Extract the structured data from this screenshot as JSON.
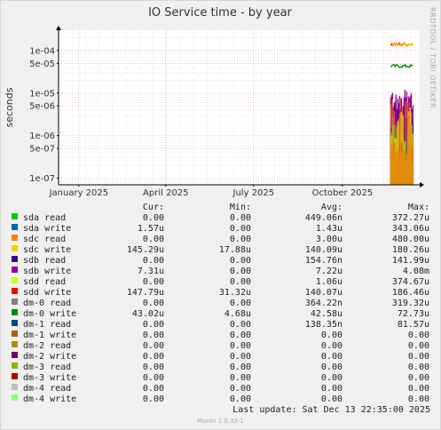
{
  "chart_data": {
    "type": "line",
    "title": "IO Service time - by year",
    "ylabel": "seconds",
    "y_scale": "log",
    "ylim": [
      7e-08,
      0.0003
    ],
    "y_ticks": [
      {
        "v": 1e-07,
        "label": "1e-07"
      },
      {
        "v": 5e-07,
        "label": "5e-07"
      },
      {
        "v": 1e-06,
        "label": "1e-06"
      },
      {
        "v": 5e-06,
        "label": "5e-06"
      },
      {
        "v": 1e-05,
        "label": "1e-05"
      },
      {
        "v": 5e-05,
        "label": "5e-05"
      },
      {
        "v": 0.0001,
        "label": "1e-04"
      }
    ],
    "x_range": [
      "2024-12-11",
      "2025-12-20"
    ],
    "x_ticks": [
      {
        "date": "2025-01-01",
        "label": "January 2025"
      },
      {
        "date": "2025-04-01",
        "label": "April 2025"
      },
      {
        "date": "2025-07-01",
        "label": "July 2025"
      },
      {
        "date": "2025-10-01",
        "label": "October 2025"
      }
    ],
    "grid": true,
    "series": [
      {
        "name": "sda read",
        "color": "#00cc00",
        "cur": "0.00",
        "min": "0.00",
        "avg": "449.06n",
        "max": "372.27u"
      },
      {
        "name": "sda write",
        "color": "#0066b3",
        "cur": "1.57u",
        "min": "0.00",
        "avg": "1.43u",
        "max": "343.06u"
      },
      {
        "name": "sdc read",
        "color": "#ff8000",
        "cur": "0.00",
        "min": "0.00",
        "avg": "3.00u",
        "max": "480.00u"
      },
      {
        "name": "sdc write",
        "color": "#ffcc00",
        "cur": "145.29u",
        "min": "17.88u",
        "avg": "140.09u",
        "max": "180.26u"
      },
      {
        "name": "sdb read",
        "color": "#330099",
        "cur": "0.00",
        "min": "0.00",
        "avg": "154.76n",
        "max": "141.99u"
      },
      {
        "name": "sdb write",
        "color": "#990099",
        "cur": "7.31u",
        "min": "0.00",
        "avg": "7.22u",
        "max": "4.08m"
      },
      {
        "name": "sdd read",
        "color": "#ccff00",
        "cur": "0.00",
        "min": "0.00",
        "avg": "1.06u",
        "max": "374.67u"
      },
      {
        "name": "sdd write",
        "color": "#ff0000",
        "cur": "147.79u",
        "min": "31.32u",
        "avg": "140.07u",
        "max": "186.46u"
      },
      {
        "name": "dm-0 read",
        "color": "#808080",
        "cur": "0.00",
        "min": "0.00",
        "avg": "364.22n",
        "max": "319.32u"
      },
      {
        "name": "dm-0 write",
        "color": "#008f00",
        "cur": "43.02u",
        "min": "4.68u",
        "avg": "42.58u",
        "max": "72.73u"
      },
      {
        "name": "dm-1 read",
        "color": "#00487d",
        "cur": "0.00",
        "min": "0.00",
        "avg": "138.35n",
        "max": "81.57u"
      },
      {
        "name": "dm-1 write",
        "color": "#b35a00",
        "cur": "0.00",
        "min": "0.00",
        "avg": "0.00",
        "max": "0.00"
      },
      {
        "name": "dm-2 read",
        "color": "#b38f00",
        "cur": "0.00",
        "min": "0.00",
        "avg": "0.00",
        "max": "0.00"
      },
      {
        "name": "dm-2 write",
        "color": "#6b006b",
        "cur": "0.00",
        "min": "0.00",
        "avg": "0.00",
        "max": "0.00"
      },
      {
        "name": "dm-3 read",
        "color": "#8fb300",
        "cur": "0.00",
        "min": "0.00",
        "avg": "0.00",
        "max": "0.00"
      },
      {
        "name": "dm-3 write",
        "color": "#b30000",
        "cur": "0.00",
        "min": "0.00",
        "avg": "0.00",
        "max": "0.00"
      },
      {
        "name": "dm-4 read",
        "color": "#bebebe",
        "cur": "0.00",
        "min": "0.00",
        "avg": "0.00",
        "max": "0.00"
      },
      {
        "name": "dm-4 write",
        "color": "#80ff80",
        "cur": "0.00",
        "min": "0.00",
        "avg": "0.00",
        "max": "0.00"
      }
    ],
    "visible_lines": [
      {
        "series": "sdd write",
        "start": "2025-11-20",
        "end": "2025-12-13",
        "level": 0.00014
      },
      {
        "series": "sdc write",
        "start": "2025-11-20",
        "end": "2025-12-13",
        "level": 0.00014
      },
      {
        "series": "dm-0 write",
        "start": "2025-11-20",
        "end": "2025-12-13",
        "level": 4.3e-05
      }
    ],
    "spike_region": {
      "start": "2025-11-20",
      "end": "2025-12-13"
    }
  },
  "legend": {
    "header": {
      "cur": "Cur:",
      "min": "Min:",
      "avg": "Avg:",
      "max": "Max:"
    }
  },
  "side_text": "RRDTOOL / TOBI OETIKER",
  "last_update": "Last update:  Sat Dec 13 22:35:00 2025",
  "footer": "Munin 2.0.33-1"
}
